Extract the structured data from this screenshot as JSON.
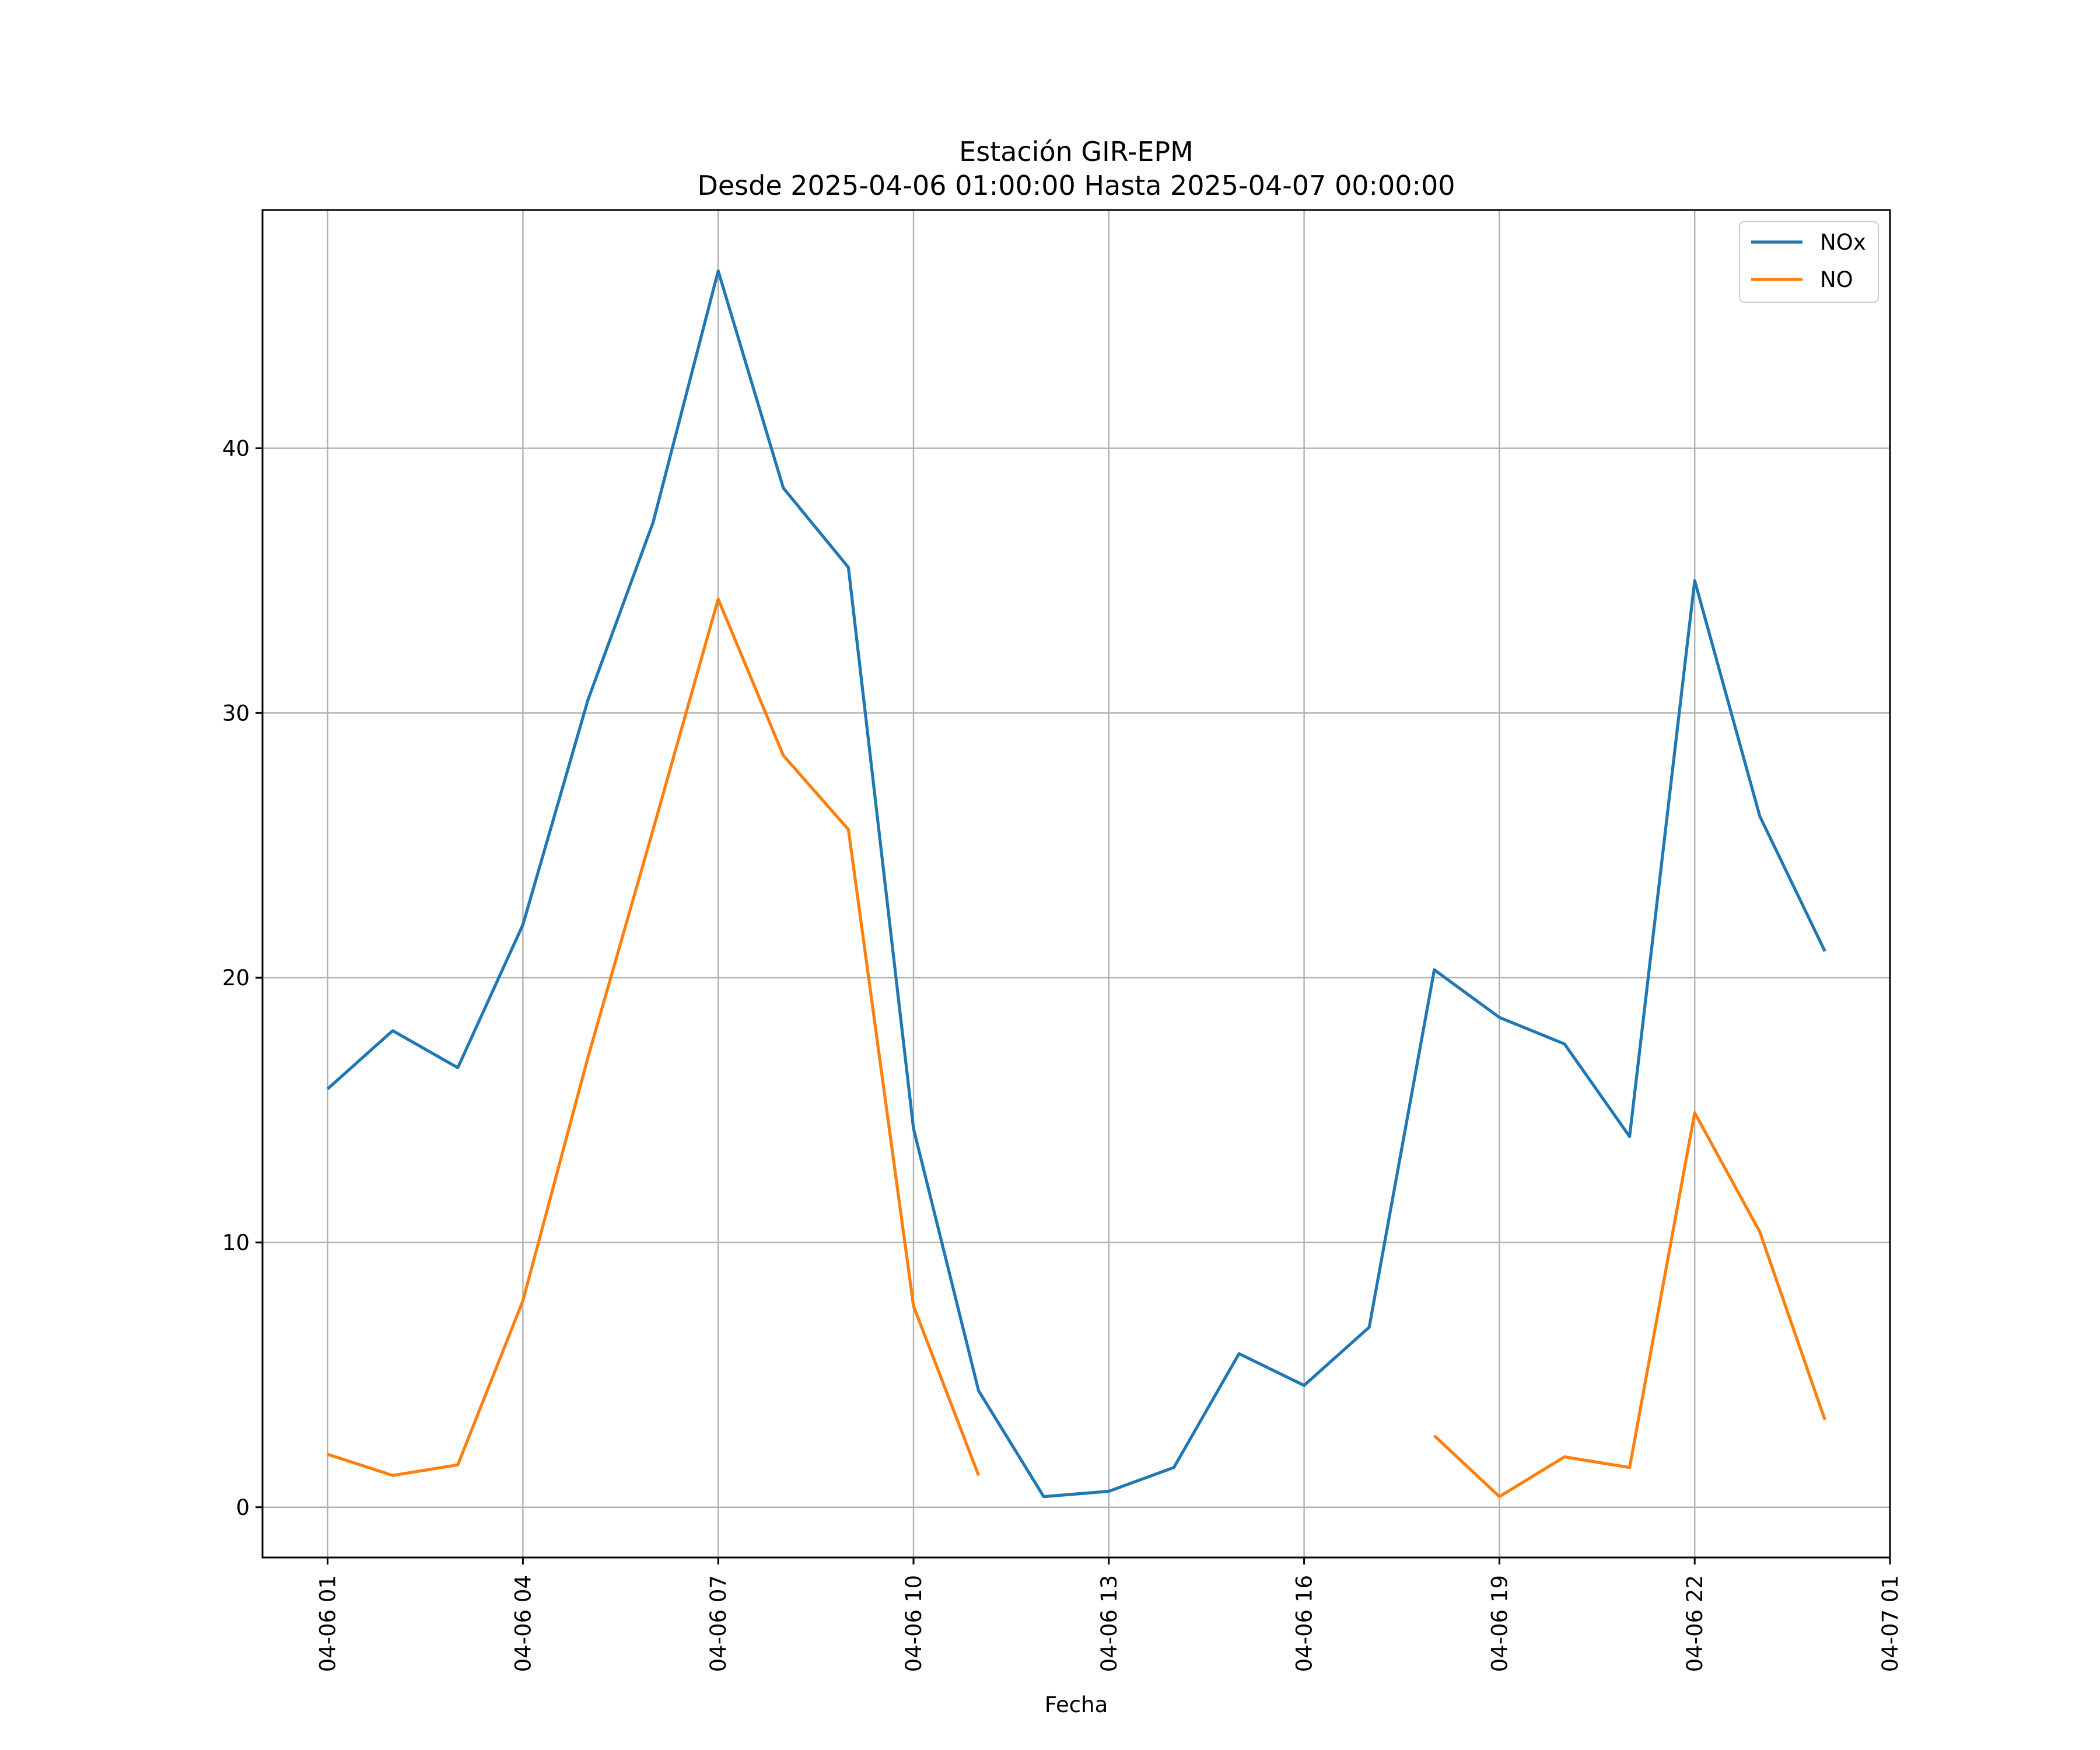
{
  "chart_data": {
    "type": "line",
    "title": "Estación GIR-EPM",
    "subtitle": "Desde 2025-04-06 01:00:00 Hasta 2025-04-07 00:00:00",
    "xlabel": "Fecha",
    "ylabel": "",
    "grid": true,
    "legend_position": "top-right",
    "x_tick_labels": [
      "04-06 01",
      "04-06 04",
      "04-06 07",
      "04-06 10",
      "04-06 13",
      "04-06 16",
      "04-06 19",
      "04-06 22",
      "04-07 01"
    ],
    "x": [
      "04-06 01:00",
      "04-06 02:00",
      "04-06 03:00",
      "04-06 04:00",
      "04-06 05:00",
      "04-06 06:00",
      "04-06 07:00",
      "04-06 08:00",
      "04-06 09:00",
      "04-06 10:00",
      "04-06 11:00",
      "04-06 12:00",
      "04-06 13:00",
      "04-06 14:00",
      "04-06 15:00",
      "04-06 16:00",
      "04-06 17:00",
      "04-06 18:00",
      "04-06 19:00",
      "04-06 20:00",
      "04-06 21:00",
      "04-06 22:00",
      "04-06 23:00",
      "04-07 00:00"
    ],
    "xlim": [
      "04-06 00:00",
      "04-07 01:00"
    ],
    "y_ticks": [
      0,
      10,
      20,
      30,
      40
    ],
    "ylim": [
      -1.9,
      49
    ],
    "series": [
      {
        "name": "NOx",
        "color": "#1f77b4",
        "values": [
          15.8,
          18.0,
          16.6,
          22.0,
          30.5,
          37.2,
          46.7,
          38.5,
          35.5,
          14.3,
          4.4,
          0.4,
          0.6,
          1.5,
          5.8,
          4.6,
          6.8,
          20.3,
          18.5,
          17.5,
          14.0,
          35.0,
          26.1,
          21.0
        ]
      },
      {
        "name": "NO",
        "color": "#ff7f0e",
        "values": [
          2.0,
          1.2,
          1.6,
          7.8,
          17.0,
          25.6,
          34.3,
          28.4,
          25.6,
          7.6,
          1.2,
          null,
          null,
          null,
          null,
          null,
          null,
          2.7,
          0.4,
          1.9,
          1.5,
          14.9,
          10.4,
          3.3
        ]
      }
    ]
  }
}
